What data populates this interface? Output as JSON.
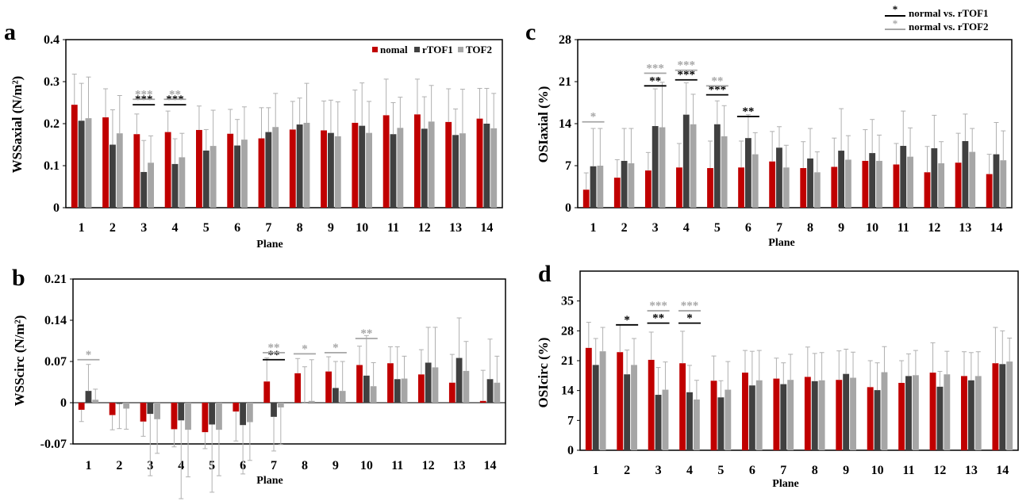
{
  "colors": {
    "normal": "#c00000",
    "rTOF1": "#404040",
    "TOF2": "#a6a6a6",
    "sig1": "#000000",
    "sig2": "#a6a6a6"
  },
  "top_legend": {
    "items": [
      {
        "mark": "*",
        "label": "normal vs. rTOF1",
        "color_key": "sig1"
      },
      {
        "mark": "*",
        "label": "normal vs. rTOF2",
        "color_key": "sig2"
      }
    ]
  },
  "chart_data": [
    {
      "id": "a",
      "type": "bar",
      "letter": "a",
      "ylabel": "WSSaxial (N/m²)",
      "xlabel": "Plane",
      "ylim": [
        0,
        0.4
      ],
      "yticks": [
        "0",
        "0.1",
        "0.2",
        "0.3",
        "0.4"
      ],
      "ytick_values": [
        0,
        0.1,
        0.2,
        0.3,
        0.4
      ],
      "categories": [
        "1",
        "2",
        "3",
        "4",
        "5",
        "6",
        "7",
        "8",
        "9",
        "10",
        "11",
        "12",
        "13",
        "14"
      ],
      "legend": {
        "labels": [
          "nomal",
          "rTOF1",
          "TOF2"
        ],
        "placement": "top-right"
      },
      "series": [
        {
          "name": "nomal",
          "color_key": "normal",
          "values": [
            0.245,
            0.215,
            0.175,
            0.18,
            0.185,
            0.176,
            0.165,
            0.186,
            0.184,
            0.202,
            0.22,
            0.222,
            0.204,
            0.212
          ],
          "err": [
            0.073,
            0.068,
            0.048,
            0.05,
            0.057,
            0.058,
            0.073,
            0.067,
            0.07,
            0.078,
            0.086,
            0.084,
            0.079,
            0.072
          ]
        },
        {
          "name": "rTOF1",
          "color_key": "rTOF1",
          "values": [
            0.207,
            0.15,
            0.085,
            0.104,
            0.136,
            0.148,
            0.18,
            0.198,
            0.178,
            0.195,
            0.175,
            0.188,
            0.173,
            0.2
          ],
          "err": [
            0.089,
            0.083,
            0.075,
            0.06,
            0.05,
            0.062,
            0.058,
            0.063,
            0.078,
            0.102,
            0.075,
            0.076,
            0.062,
            0.084
          ]
        },
        {
          "name": "TOF2",
          "color_key": "TOF2",
          "values": [
            0.213,
            0.177,
            0.107,
            0.12,
            0.147,
            0.162,
            0.192,
            0.202,
            0.17,
            0.178,
            0.19,
            0.205,
            0.177,
            0.189
          ],
          "err": [
            0.098,
            0.09,
            0.064,
            0.057,
            0.085,
            0.078,
            0.08,
            0.094,
            0.082,
            0.075,
            0.073,
            0.086,
            0.105,
            0.083
          ]
        }
      ],
      "significance": [
        {
          "plane": "3",
          "mark": "***",
          "color_key": "sig1",
          "level": 0.245
        },
        {
          "plane": "3",
          "mark": "***",
          "color_key": "sig2",
          "level": 0.258
        },
        {
          "plane": "4",
          "mark": "***",
          "color_key": "sig1",
          "level": 0.245
        },
        {
          "plane": "4",
          "mark": "**",
          "color_key": "sig2",
          "level": 0.258
        }
      ]
    },
    {
      "id": "c",
      "type": "bar",
      "letter": "c",
      "ylabel": "OSIaxial (%)",
      "xlabel": "Plane",
      "ylim": [
        0,
        28
      ],
      "yticks": [
        "0",
        "7",
        "14",
        "21",
        "28"
      ],
      "ytick_values": [
        0,
        7,
        14,
        21,
        28
      ],
      "categories": [
        "1",
        "2",
        "3",
        "4",
        "5",
        "6",
        "7",
        "8",
        "9",
        "10",
        "11",
        "12",
        "13",
        "14"
      ],
      "series": [
        {
          "name": "nomal",
          "color_key": "normal",
          "values": [
            3.0,
            5.0,
            6.2,
            6.7,
            6.6,
            6.7,
            7.7,
            6.6,
            6.8,
            7.8,
            7.2,
            5.9,
            7.5,
            5.6
          ],
          "err": [
            2.8,
            3.0,
            3.0,
            4.0,
            4.5,
            4.4,
            5.0,
            4.4,
            4.8,
            5.2,
            3.5,
            4.3,
            4.9,
            3.3
          ]
        },
        {
          "name": "rTOF1",
          "color_key": "rTOF1",
          "values": [
            6.9,
            7.8,
            13.6,
            15.5,
            13.9,
            11.6,
            10.0,
            8.2,
            9.5,
            9.1,
            10.3,
            9.9,
            11.1,
            8.9
          ],
          "err": [
            6.3,
            5.4,
            6.2,
            5.3,
            3.9,
            3.9,
            3.5,
            5.0,
            7.0,
            5.6,
            5.8,
            5.5,
            4.5,
            5.3
          ]
        },
        {
          "name": "TOF2",
          "color_key": "TOF2",
          "values": [
            7.0,
            7.4,
            13.4,
            13.9,
            11.9,
            8.9,
            6.7,
            5.9,
            8.0,
            7.8,
            8.5,
            7.4,
            9.3,
            7.9
          ],
          "err": [
            6.2,
            5.8,
            7.5,
            5.0,
            5.1,
            3.6,
            3.7,
            3.4,
            4.0,
            4.3,
            4.8,
            3.6,
            3.9,
            4.9
          ]
        }
      ],
      "significance": [
        {
          "plane": "1",
          "mark": "*",
          "color_key": "sig2",
          "level": 14.3
        },
        {
          "plane": "3",
          "mark": "**",
          "color_key": "sig1",
          "level": 20.3
        },
        {
          "plane": "3",
          "mark": "***",
          "color_key": "sig2",
          "level": 22.4
        },
        {
          "plane": "4",
          "mark": "***",
          "color_key": "sig1",
          "level": 21.3
        },
        {
          "plane": "4",
          "mark": "***",
          "color_key": "sig2",
          "level": 22.9
        },
        {
          "plane": "5",
          "mark": "***",
          "color_key": "sig1",
          "level": 18.8
        },
        {
          "plane": "5",
          "mark": "**",
          "color_key": "sig2",
          "level": 20.3
        },
        {
          "plane": "6",
          "mark": "**",
          "color_key": "sig1",
          "level": 15.2
        }
      ]
    },
    {
      "id": "b",
      "type": "bar",
      "letter": "b",
      "ylabel": "WSScirc (N/m²)",
      "xlabel": "Plane",
      "ylim": [
        -0.07,
        0.21
      ],
      "yticks": [
        "-0.07",
        "0",
        "0.07",
        "0.14",
        "0.21"
      ],
      "ytick_values": [
        -0.07,
        0,
        0.07,
        0.14,
        0.21
      ],
      "categories": [
        "1",
        "2",
        "3",
        "4",
        "5",
        "6",
        "7",
        "8",
        "9",
        "10",
        "11",
        "12",
        "13",
        "14"
      ],
      "series": [
        {
          "name": "nomal",
          "color_key": "normal",
          "values": [
            -0.012,
            -0.021,
            -0.032,
            -0.045,
            -0.05,
            -0.015,
            0.036,
            0.05,
            0.053,
            0.064,
            0.067,
            0.048,
            0.034,
            0.003
          ],
          "err": [
            0.02,
            0.025,
            0.025,
            0.03,
            0.028,
            0.05,
            0.04,
            0.025,
            0.025,
            0.032,
            0.028,
            0.042,
            0.048,
            0.052
          ]
        },
        {
          "name": "rTOF1",
          "color_key": "rTOF1",
          "values": [
            0.02,
            -0.002,
            -0.019,
            -0.03,
            -0.037,
            -0.038,
            -0.024,
            0.0,
            0.025,
            0.046,
            0.04,
            0.068,
            0.076,
            0.04
          ],
          "err": [
            0.045,
            0.042,
            0.105,
            0.133,
            0.115,
            0.083,
            0.058,
            0.061,
            0.045,
            0.068,
            0.055,
            0.06,
            0.068,
            0.068
          ]
        },
        {
          "name": "TOF2",
          "color_key": "TOF2",
          "values": [
            0.005,
            -0.01,
            -0.028,
            -0.046,
            -0.046,
            -0.033,
            -0.008,
            0.003,
            0.02,
            0.028,
            0.041,
            0.06,
            0.054,
            0.034
          ],
          "err": [
            0.018,
            0.035,
            0.058,
            0.08,
            0.078,
            0.065,
            0.063,
            0.07,
            0.05,
            0.04,
            0.038,
            0.068,
            0.05,
            0.045
          ]
        }
      ],
      "significance": [
        {
          "plane": "1",
          "mark": "*",
          "color_key": "sig2",
          "level": 0.073
        },
        {
          "plane": "7",
          "mark": "**",
          "color_key": "sig1",
          "level": 0.073
        },
        {
          "plane": "7",
          "mark": "**",
          "color_key": "sig2",
          "level": 0.085
        },
        {
          "plane": "8",
          "mark": "*",
          "color_key": "sig2",
          "level": 0.083
        },
        {
          "plane": "9",
          "mark": "*",
          "color_key": "sig2",
          "level": 0.085
        },
        {
          "plane": "10",
          "mark": "**",
          "color_key": "sig2",
          "level": 0.109
        }
      ]
    },
    {
      "id": "d",
      "type": "bar",
      "letter": "d",
      "ylabel": "OSIcirc (%)",
      "xlabel": "Plane",
      "ylim": [
        0,
        42
      ],
      "yticks": [
        "0",
        "7",
        "14",
        "21",
        "28",
        "35"
      ],
      "ytick_values": [
        0,
        7,
        14,
        21,
        28,
        35
      ],
      "categories": [
        "1",
        "2",
        "3",
        "4",
        "5",
        "6",
        "7",
        "8",
        "9",
        "10",
        "11",
        "12",
        "13",
        "14"
      ],
      "series": [
        {
          "name": "nomal",
          "color_key": "normal",
          "values": [
            24.0,
            23.0,
            21.2,
            20.4,
            16.3,
            18.2,
            16.8,
            17.2,
            16.5,
            14.8,
            15.8,
            18.2,
            17.4,
            20.4
          ],
          "err": [
            6.0,
            6.4,
            6.5,
            7.5,
            5.8,
            5.2,
            4.8,
            7.0,
            6.8,
            6.2,
            5.2,
            7.0,
            5.7,
            8.4
          ]
        },
        {
          "name": "rTOF1",
          "color_key": "rTOF1",
          "values": [
            20.0,
            17.8,
            13.0,
            13.6,
            12.4,
            15.2,
            15.5,
            16.2,
            17.9,
            14.1,
            17.4,
            14.9,
            16.4,
            20.2
          ],
          "err": [
            6.2,
            5.7,
            6.4,
            6.3,
            3.9,
            8.0,
            5.0,
            6.5,
            5.8,
            6.4,
            5.2,
            3.6,
            6.5,
            7.8
          ]
        },
        {
          "name": "TOF2",
          "color_key": "TOF2",
          "values": [
            23.2,
            20.0,
            14.2,
            11.9,
            14.2,
            16.4,
            16.5,
            16.4,
            17.0,
            18.3,
            17.6,
            17.8,
            17.4,
            20.8
          ],
          "err": [
            5.6,
            6.2,
            6.5,
            4.5,
            6.6,
            7.0,
            6.0,
            6.5,
            6.0,
            6.0,
            5.8,
            5.4,
            5.7,
            5.5
          ]
        }
      ],
      "significance": [
        {
          "plane": "2",
          "mark": "*",
          "color_key": "sig1",
          "level": 29.4
        },
        {
          "plane": "3",
          "mark": "**",
          "color_key": "sig1",
          "level": 29.8
        },
        {
          "plane": "3",
          "mark": "***",
          "color_key": "sig2",
          "level": 32.7
        },
        {
          "plane": "4",
          "mark": "*",
          "color_key": "sig1",
          "level": 29.8
        },
        {
          "plane": "4",
          "mark": "***",
          "color_key": "sig2",
          "level": 32.7
        }
      ]
    }
  ]
}
